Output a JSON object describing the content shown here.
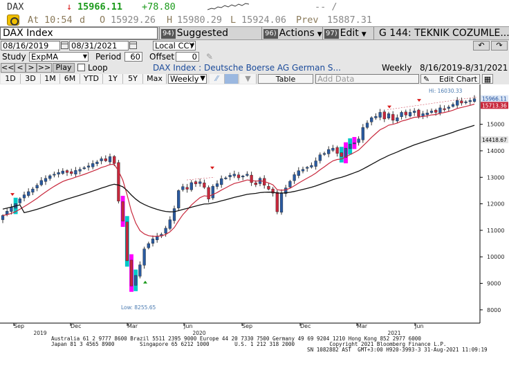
{
  "quote": {
    "ticker": "DAX",
    "last": "15966.11",
    "change": "+78.80",
    "at_label": "At",
    "time": "10:54",
    "time_suffix": "d",
    "open_label": "O",
    "open": "15929.26",
    "high_label": "H",
    "high": "15980.29",
    "low_label": "L",
    "low": "15924.06",
    "prev_label": "Prev",
    "prev": "15887.31",
    "dashes": "-- /"
  },
  "function_bar": {
    "security": "DAX Index",
    "buttons": [
      {
        "num": "94)",
        "label": "Suggested Charts"
      },
      {
        "num": "96)",
        "label": "Actions"
      },
      {
        "num": "97)",
        "label": "Edit"
      }
    ],
    "mnemonic": "G 144: TEKNIK COZUMLE..."
  },
  "toolbar": {
    "date_from": "08/16/2019",
    "date_to": "08/31/2021",
    "currency": "Local CCY",
    "study_label": "Study",
    "study_value": "ExpMA",
    "period_label": "Period",
    "period_value": "60",
    "offset_label": "Offset",
    "offset_value": "0",
    "nav_buttons": [
      "<<",
      "<",
      ">",
      ">>"
    ],
    "play_label": "Play",
    "loop_label": "Loop",
    "security_desc": "DAX Index : Deutsche Boerse AG German S...",
    "frequency": "Weekly",
    "range_text": "8/16/2019-8/31/2021",
    "periods": [
      "1D",
      "3D",
      "1M",
      "6M",
      "YTD",
      "1Y",
      "5Y",
      "Max"
    ],
    "freq_select": "Weekly",
    "table_label": "Table",
    "add_data_placeholder": "Add Data",
    "edit_chart_label": "Edit Chart"
  },
  "chart_data": {
    "type": "candlestick",
    "y_ticks": [
      8000,
      9000,
      10000,
      11000,
      12000,
      13000,
      14000,
      15000
    ],
    "ylim": [
      7500,
      16400
    ],
    "x_month_labels": [
      "Sep",
      "Dec",
      "Mar",
      "Jun",
      "Sep",
      "Dec",
      "Mar",
      "Jun"
    ],
    "x_year_labels": [
      "2019",
      "2020",
      "2021"
    ],
    "last_price_tag": "15966.11",
    "short_ma_tag": "15713.36",
    "long_ma_tag": "14418.67",
    "high_annotation": "Hi: 16030.33",
    "low_annotation": "Low: 8255.65",
    "colors": {
      "up": "#2a5aa0",
      "down": "#c8283c",
      "short_ma": "#c8283c",
      "long_ma": "#111111",
      "signal": "#ff00ff",
      "signal_alt": "#00c8c8"
    },
    "weekly_closes": [
      11560,
      11720,
      11870,
      12010,
      12190,
      12340,
      12460,
      12560,
      12700,
      12880,
      12960,
      13060,
      13120,
      13180,
      13240,
      13180,
      13140,
      13260,
      13300,
      13360,
      13430,
      13520,
      13580,
      13700,
      13620,
      13780,
      13520,
      12100,
      11350,
      9850,
      8900,
      9300,
      9700,
      10300,
      10500,
      10680,
      10780,
      10850,
      11080,
      11400,
      11820,
      12500,
      12650,
      12550,
      12800,
      12750,
      12830,
      12620,
      12180,
      12660,
      12760,
      12950,
      12980,
      13080,
      13120,
      12980,
      13050,
      13120,
      12800,
      12720,
      12960,
      12700,
      12550,
      12400,
      11700,
      12420,
      12600,
      12850,
      13100,
      13250,
      13300,
      13380,
      13450,
      13620,
      13850,
      13900,
      14050,
      14100,
      13900,
      13780,
      14100,
      14250,
      14300,
      14450,
      14880,
      15050,
      15250,
      15300,
      15450,
      15200,
      15400,
      15150,
      15250,
      15450,
      15350,
      15450,
      15500,
      15300,
      15400,
      15430,
      15500,
      15450,
      15620,
      15570,
      15650,
      15750,
      15900,
      15800,
      15850,
      15900,
      15966
    ]
  },
  "footer": {
    "line1": "Australia 61 2 9777 8600 Brazil 5511 2395 9000 Europe 44 20 7330 7500 Germany 49 69 9204 1210 Hong Kong 852 2977 6000",
    "line2": "Japan 81 3 4565 8900        Singapore 65 6212 1000        U.S. 1 212 318 2000           Copyright 2021 Bloomberg Finance L.P.",
    "line3": "SN 1082882 AST  GMT+3:00 H920-3993-3 31-Aug-2021 11:09:19"
  }
}
